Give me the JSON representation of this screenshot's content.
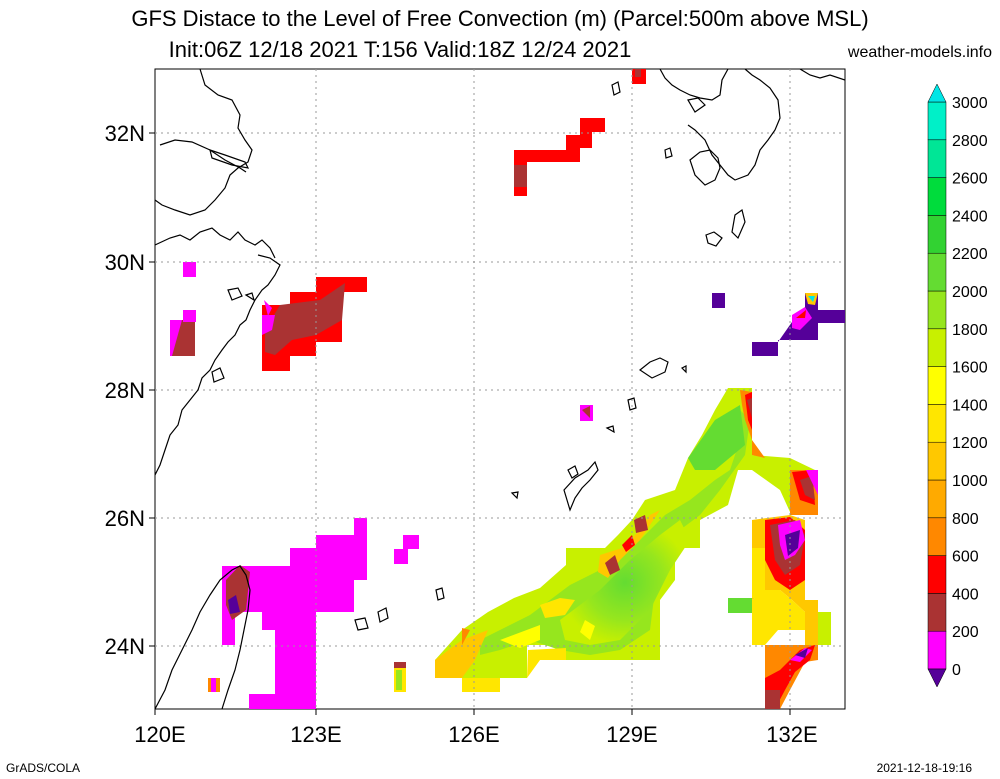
{
  "title": {
    "line1": "GFS Distace to the Level of Free Convection (m) (Parcel:500m above MSL)",
    "line2": "Init:06Z 12/18 2021 T:156 Valid:18Z 12/24 2021"
  },
  "source": "weather-models.info",
  "footer": {
    "left": "GrADS/COLA",
    "right": "2021-12-18-19:16"
  },
  "axes": {
    "lon_labels": [
      "120E",
      "123E",
      "126E",
      "129E",
      "132E"
    ],
    "lat_labels": [
      "24N",
      "26N",
      "28N",
      "30N",
      "32N"
    ]
  },
  "colorbar": {
    "levels": [
      "0",
      "200",
      "400",
      "600",
      "800",
      "1000",
      "1200",
      "1400",
      "1600",
      "1800",
      "2000",
      "2200",
      "2400",
      "2600",
      "2800",
      "3000"
    ],
    "colors": [
      "#ff00ff",
      "#aa3333",
      "#ff0000",
      "#ff8800",
      "#ffaa00",
      "#ffc800",
      "#ffe600",
      "#ffff00",
      "#c8f000",
      "#96e61e",
      "#64dc32",
      "#32d232",
      "#00dc3c",
      "#00e696",
      "#00f0c8"
    ],
    "under_color": "#550099",
    "over_color": "#00e6e6"
  }
}
